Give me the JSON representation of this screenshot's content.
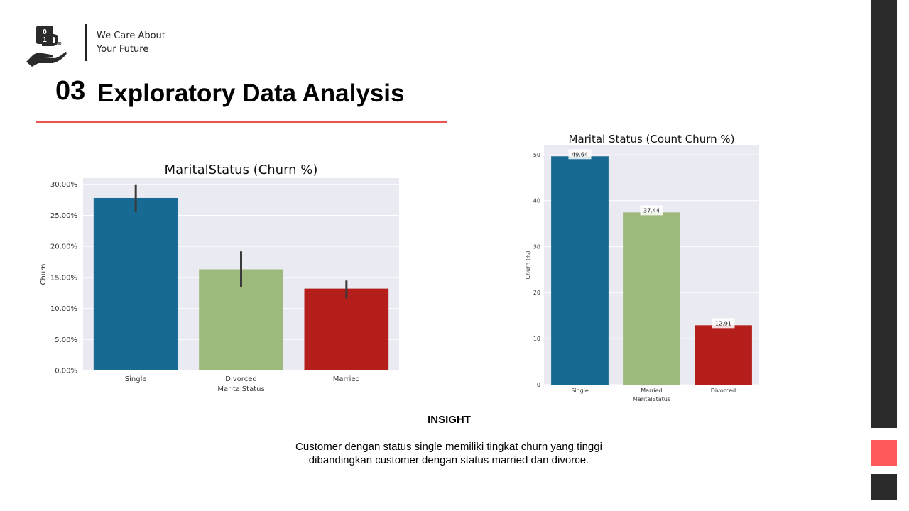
{
  "header": {
    "logo_text": "01 B IND",
    "tagline_line1": "We Care About",
    "tagline_line2": "Your Future"
  },
  "section": {
    "number": "03",
    "title": "Exploratory Data Analysis",
    "accent_color": "#ef5350"
  },
  "colors": {
    "single": "#176a93",
    "divorced": "#9dba7c",
    "married": "#b41f1b",
    "plot_bg": "#eaeaf2",
    "side_dark": "#2b2b2b",
    "side_accent": "#ff5a5a"
  },
  "chart_data": [
    {
      "type": "bar",
      "title": "MaritalStatus (Churn %)",
      "xlabel": "MaritalStatus",
      "ylabel": "Churn",
      "categories": [
        "Single",
        "Divorced",
        "Married"
      ],
      "values": [
        27.8,
        16.3,
        13.2
      ],
      "error_low": [
        25.5,
        13.5,
        11.6
      ],
      "error_high": [
        30.0,
        19.2,
        14.5
      ],
      "ylim": [
        0,
        31
      ],
      "yticks": [
        0,
        5,
        10,
        15,
        20,
        25,
        30
      ],
      "ytick_labels": [
        "0.00%",
        "5.00%",
        "10.00%",
        "15.00%",
        "20.00%",
        "25.00%",
        "30.00%"
      ],
      "bar_colors": [
        "#176a93",
        "#9dba7c",
        "#b41f1b"
      ],
      "grid": true
    },
    {
      "type": "bar",
      "title": "Marital Status (Count Churn %)",
      "xlabel": "MaritalStatus",
      "ylabel": "Churn (%)",
      "categories": [
        "Single",
        "Married",
        "Divorced"
      ],
      "values": [
        49.64,
        37.44,
        12.91
      ],
      "data_labels": [
        "49.64",
        "37.44",
        "12.91"
      ],
      "ylim": [
        0,
        52
      ],
      "yticks": [
        0,
        10,
        20,
        30,
        40,
        50
      ],
      "ytick_labels": [
        "0",
        "10",
        "20",
        "30",
        "40",
        "50"
      ],
      "bar_colors": [
        "#176a93",
        "#9dba7c",
        "#b41f1b"
      ],
      "grid": true
    }
  ],
  "insight": {
    "title": "INSIGHT",
    "line1": "Customer dengan status single memiliki tingkat churn yang tinggi",
    "line2": "dibandingkan customer dengan status married dan divorce."
  }
}
